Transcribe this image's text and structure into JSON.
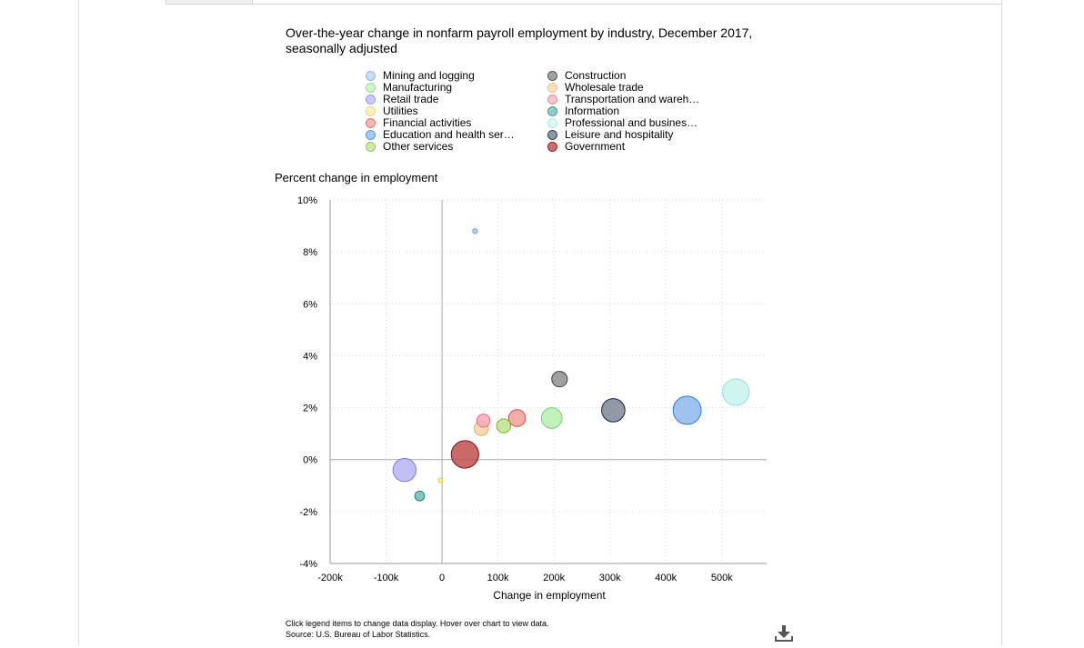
{
  "chart_data": {
    "type": "scatter",
    "title": "Over-the-year change in nonfarm payroll employment by industry, December 2017, seasonally adjusted",
    "xlabel": "Change in employment",
    "ylabel": "Percent change in employment",
    "xlim": [
      -200000,
      580000
    ],
    "ylim": [
      -4,
      10
    ],
    "x_ticks": [
      -200000,
      -100000,
      0,
      100000,
      200000,
      300000,
      400000,
      500000
    ],
    "x_tick_labels": [
      "-200k",
      "-100k",
      "0",
      "100k",
      "200k",
      "300k",
      "400k",
      "500k"
    ],
    "y_ticks": [
      -4,
      -2,
      0,
      2,
      4,
      6,
      8,
      10
    ],
    "y_tick_labels": [
      "-4%",
      "-2%",
      "0%",
      "2%",
      "4%",
      "6%",
      "8%",
      "10%"
    ],
    "grid": true,
    "legend_placement": "top",
    "bubble_size_meaning": "employment level",
    "series": [
      {
        "name": "Mining and logging",
        "x": 59000,
        "y": 8.8,
        "size": 0.7,
        "color": "#a9c9f5",
        "stroke": "#6f9fe0"
      },
      {
        "name": "Construction",
        "x": 210000,
        "y": 3.1,
        "size": 7.2,
        "color": "#8f8f8f",
        "stroke": "#404040"
      },
      {
        "name": "Manufacturing",
        "x": 196000,
        "y": 1.6,
        "size": 12.6,
        "color": "#b7f0b0",
        "stroke": "#78d06e"
      },
      {
        "name": "Wholesale trade",
        "x": 70000,
        "y": 1.2,
        "size": 5.9,
        "color": "#fbd3a6",
        "stroke": "#e8a860"
      },
      {
        "name": "Retail trade",
        "x": -67000,
        "y": -0.4,
        "size": 15.9,
        "color": "#b6b5f5",
        "stroke": "#7d7ae6"
      },
      {
        "name": "Transportation and warehousing",
        "x": 74000,
        "y": 1.5,
        "size": 5.1,
        "color": "#f8a9b8",
        "stroke": "#e56b84"
      },
      {
        "name": "Utilities",
        "x": -3000,
        "y": -0.8,
        "size": 0.6,
        "color": "#fbe69a",
        "stroke": "#e6c44d"
      },
      {
        "name": "Information",
        "x": -40000,
        "y": -1.4,
        "size": 2.8,
        "color": "#6bbfb5",
        "stroke": "#2c7f76"
      },
      {
        "name": "Financial activities",
        "x": 134000,
        "y": 1.6,
        "size": 8.5,
        "color": "#f39e96",
        "stroke": "#db4c44"
      },
      {
        "name": "Professional and business services",
        "x": 525000,
        "y": 2.6,
        "size": 20.9,
        "color": "#c8f3ee",
        "stroke": "#8fe3da"
      },
      {
        "name": "Education and health services",
        "x": 438000,
        "y": 1.9,
        "size": 23.4,
        "color": "#8eb8ec",
        "stroke": "#2a78d6"
      },
      {
        "name": "Leisure and hospitality",
        "x": 306000,
        "y": 1.9,
        "size": 16.1,
        "color": "#7d8795",
        "stroke": "#1c2533"
      },
      {
        "name": "Other services",
        "x": 110000,
        "y": 1.3,
        "size": 5.8,
        "color": "#bfe08c",
        "stroke": "#7fb133"
      },
      {
        "name": "Government",
        "x": 41000,
        "y": 0.2,
        "size": 22.3,
        "color": "#c0504d",
        "stroke": "#7a1515"
      }
    ]
  },
  "legend": {
    "items": [
      {
        "label": "Mining and logging",
        "color": "#c9ddf8",
        "stroke": "#8fb6ec"
      },
      {
        "label": "Construction",
        "color": "#a3a3a3",
        "stroke": "#555555"
      },
      {
        "label": "Manufacturing",
        "color": "#cff5c9",
        "stroke": "#9cdc93"
      },
      {
        "label": "Wholesale trade",
        "color": "#fce0bf",
        "stroke": "#efbf84"
      },
      {
        "label": "Retail trade",
        "color": "#cccbf8",
        "stroke": "#9c9aee"
      },
      {
        "label": "Transportation and wareh…",
        "color": "#fac4ce",
        "stroke": "#ec8fa1"
      },
      {
        "label": "Utilities",
        "color": "#fdf0c0",
        "stroke": "#efd67a"
      },
      {
        "label": "Information",
        "color": "#8ed0c7",
        "stroke": "#4d9c93"
      },
      {
        "label": "Financial activities",
        "color": "#f7b9b3",
        "stroke": "#e6756e"
      },
      {
        "label": "Professional and busines…",
        "color": "#dcf8f4",
        "stroke": "#acebe3"
      },
      {
        "label": "Education and health ser…",
        "color": "#a9c8f0",
        "stroke": "#5b97e0"
      },
      {
        "label": "Leisure and hospitality",
        "color": "#8d96a3",
        "stroke": "#3a4452"
      },
      {
        "label": "Other services",
        "color": "#d0e9a9",
        "stroke": "#9cc663"
      },
      {
        "label": "Government",
        "color": "#cc6f6c",
        "stroke": "#8e2a2a"
      }
    ]
  },
  "footer": {
    "note": "Click legend items to change data display. Hover over chart to view data.",
    "source": "Source: U.S. Bureau of Labor Statistics."
  },
  "icons": {
    "download": "download-icon"
  }
}
